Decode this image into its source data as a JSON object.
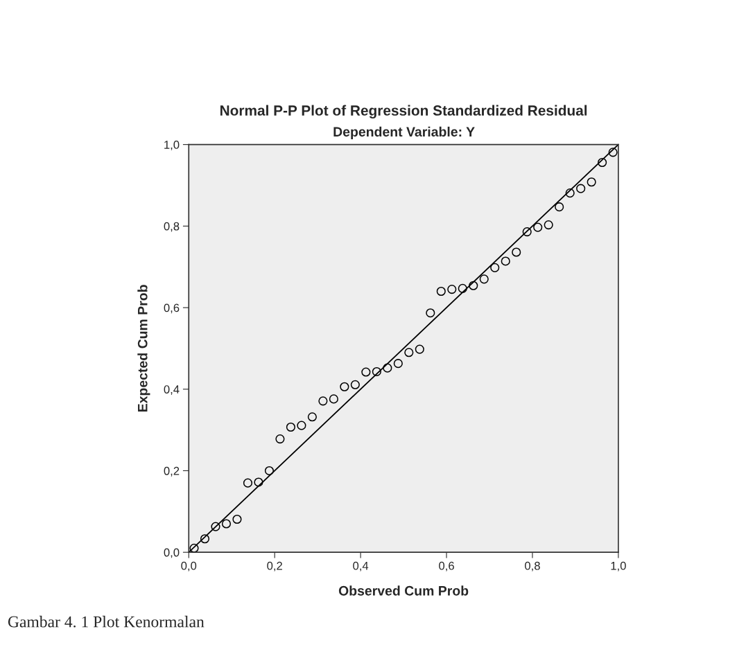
{
  "chart_data": {
    "type": "scatter",
    "title": "Normal P-P Plot of Regression Standardized Residual",
    "subtitle": "Dependent Variable: Y",
    "xlabel": "Observed Cum Prob",
    "ylabel": "Expected Cum Prob",
    "annotations": [
      "Gambar 4. 1 Plot Kenormalan"
    ],
    "x": [
      0.0125,
      0.0375,
      0.0625,
      0.0875,
      0.1125,
      0.1375,
      0.1625,
      0.1875,
      0.2125,
      0.2375,
      0.2625,
      0.2875,
      0.3125,
      0.3375,
      0.3625,
      0.3875,
      0.4125,
      0.4375,
      0.4625,
      0.4875,
      0.5125,
      0.5375,
      0.5625,
      0.5875,
      0.6125,
      0.6375,
      0.6625,
      0.6875,
      0.7125,
      0.7375,
      0.7625,
      0.7875,
      0.8125,
      0.8375,
      0.8625,
      0.8875,
      0.9125,
      0.9375,
      0.9625,
      0.9875
    ],
    "series": [
      {
        "color": "#000000",
        "marker": "circle",
        "values": [
          0.01,
          0.033,
          0.063,
          0.07,
          0.081,
          0.17,
          0.172,
          0.2,
          0.278,
          0.307,
          0.311,
          0.332,
          0.371,
          0.376,
          0.406,
          0.411,
          0.442,
          0.443,
          0.452,
          0.463,
          0.49,
          0.498,
          0.587,
          0.64,
          0.645,
          0.647,
          0.654,
          0.67,
          0.698,
          0.714,
          0.736,
          0.786,
          0.797,
          0.803,
          0.847,
          0.881,
          0.892,
          0.908,
          0.956,
          0.981
        ]
      },
      {
        "type": "line",
        "color": "#000000",
        "marker": "none",
        "line_style": "solid",
        "x": [
          0,
          1
        ],
        "values": [
          0,
          1
        ]
      }
    ],
    "xlim": [
      0,
      1
    ],
    "ylim": [
      0,
      1
    ],
    "xticks": [
      {
        "value": 0,
        "label": "0,0"
      },
      {
        "value": 0.2,
        "label": "0,2"
      },
      {
        "value": 0.4,
        "label": "0,4"
      },
      {
        "value": 0.6,
        "label": "0,6"
      },
      {
        "value": 0.8,
        "label": "0,8"
      },
      {
        "value": 1,
        "label": "1,0"
      }
    ],
    "yticks": [
      {
        "value": 0,
        "label": "0,0"
      },
      {
        "value": 0.2,
        "label": "0,2"
      },
      {
        "value": 0.4,
        "label": "0,4"
      },
      {
        "value": 0.6,
        "label": "0,6"
      },
      {
        "value": 0.8,
        "label": "0,8"
      },
      {
        "value": 1,
        "label": "1,0"
      }
    ],
    "grid": false,
    "legend": false
  }
}
